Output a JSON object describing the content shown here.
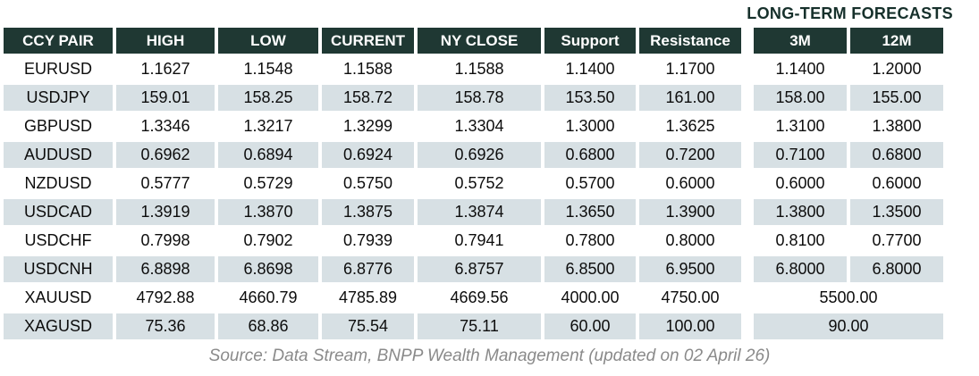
{
  "title": "LONG-TERM FORECASTS",
  "source": "Source: Data Stream, BNPP Wealth Management (updated on 02 April 26)",
  "colors": {
    "header_bg": "#1f3833",
    "header_text": "#ffffff",
    "row_stripe": "#d7e0e4",
    "title_text": "#16302b",
    "source_text": "#8a8a8a"
  },
  "table": {
    "columns": [
      "CCY PAIR",
      "HIGH",
      "LOW",
      "CURRENT",
      "NY CLOSE",
      "Support",
      "Resistance",
      "3M",
      "12M"
    ],
    "rows": [
      {
        "pair": "EURUSD",
        "values": [
          "1.1627",
          "1.1548",
          "1.1588",
          "1.1588",
          "1.1400",
          "1.1700",
          "1.1400",
          "1.2000"
        ]
      },
      {
        "pair": "USDJPY",
        "values": [
          "159.01",
          "158.25",
          "158.72",
          "158.78",
          "153.50",
          "161.00",
          "158.00",
          "155.00"
        ]
      },
      {
        "pair": "GBPUSD",
        "values": [
          "1.3346",
          "1.3217",
          "1.3299",
          "1.3304",
          "1.3000",
          "1.3625",
          "1.3100",
          "1.3800"
        ]
      },
      {
        "pair": "AUDUSD",
        "values": [
          "0.6962",
          "0.6894",
          "0.6924",
          "0.6926",
          "0.6800",
          "0.7200",
          "0.7100",
          "0.6800"
        ]
      },
      {
        "pair": "NZDUSD",
        "values": [
          "0.5777",
          "0.5729",
          "0.5750",
          "0.5752",
          "0.5700",
          "0.6000",
          "0.6000",
          "0.6000"
        ]
      },
      {
        "pair": "USDCAD",
        "values": [
          "1.3919",
          "1.3870",
          "1.3875",
          "1.3874",
          "1.3650",
          "1.3900",
          "1.3800",
          "1.3500"
        ]
      },
      {
        "pair": "USDCHF",
        "values": [
          "0.7998",
          "0.7902",
          "0.7939",
          "0.7941",
          "0.7800",
          "0.8000",
          "0.8100",
          "0.7700"
        ]
      },
      {
        "pair": "USDCNH",
        "values": [
          "6.8898",
          "6.8698",
          "6.8776",
          "6.8757",
          "6.8500",
          "6.9500",
          "6.8000",
          "6.8000"
        ]
      },
      {
        "pair": "XAUUSD",
        "values": [
          "4792.88",
          "4660.79",
          "4785.89",
          "4669.56",
          "4000.00",
          "4750.00"
        ],
        "forecast_3m_12m": "5500.00"
      },
      {
        "pair": "XAGUSD",
        "values": [
          "75.36",
          "68.86",
          "75.54",
          "75.11",
          "60.00",
          "100.00"
        ],
        "forecast_3m_12m": "90.00"
      }
    ]
  }
}
